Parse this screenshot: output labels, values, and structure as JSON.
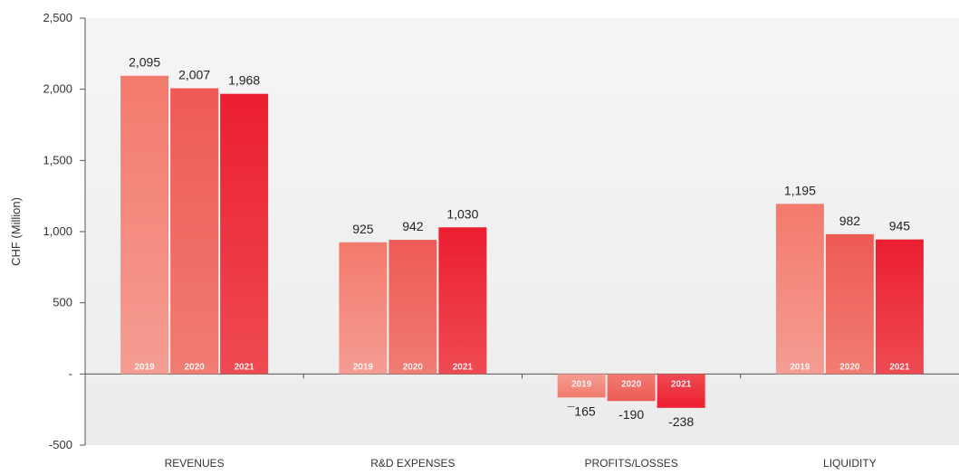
{
  "chart_data": {
    "type": "bar",
    "ylabel": "CHF (Million)",
    "ylim": [
      -500,
      2500
    ],
    "yticks": [
      -500,
      0,
      500,
      1000,
      1500,
      2000,
      2500
    ],
    "ytick_labels": [
      "-500",
      "-",
      "500",
      "1,000",
      "1,500",
      "2,000",
      "2,500"
    ],
    "categories": [
      "REVENUES",
      "R&D EXPENSES",
      "PROFITS/LOSSES",
      "LIQUIDITY"
    ],
    "series": [
      {
        "name": "2019",
        "values": [
          2095,
          925,
          -165,
          1195
        ],
        "labels": [
          "2,095",
          "925",
          "¯165",
          "1,195"
        ],
        "color_top": "#f37a6d",
        "color_bottom": "#f59c92"
      },
      {
        "name": "2020",
        "values": [
          2007,
          942,
          -190,
          982
        ],
        "labels": [
          "2,007",
          "942",
          "-190",
          "982"
        ],
        "color_top": "#ee5a56",
        "color_bottom": "#f07c72"
      },
      {
        "name": "2021",
        "values": [
          1968,
          1030,
          -238,
          945
        ],
        "labels": [
          "1,968",
          "1,030",
          "-238",
          "945"
        ],
        "color_top": "#ec1e32",
        "color_bottom": "#ee4a52"
      }
    ],
    "grid": false,
    "legend": "none",
    "plot_background": "#ececec"
  }
}
